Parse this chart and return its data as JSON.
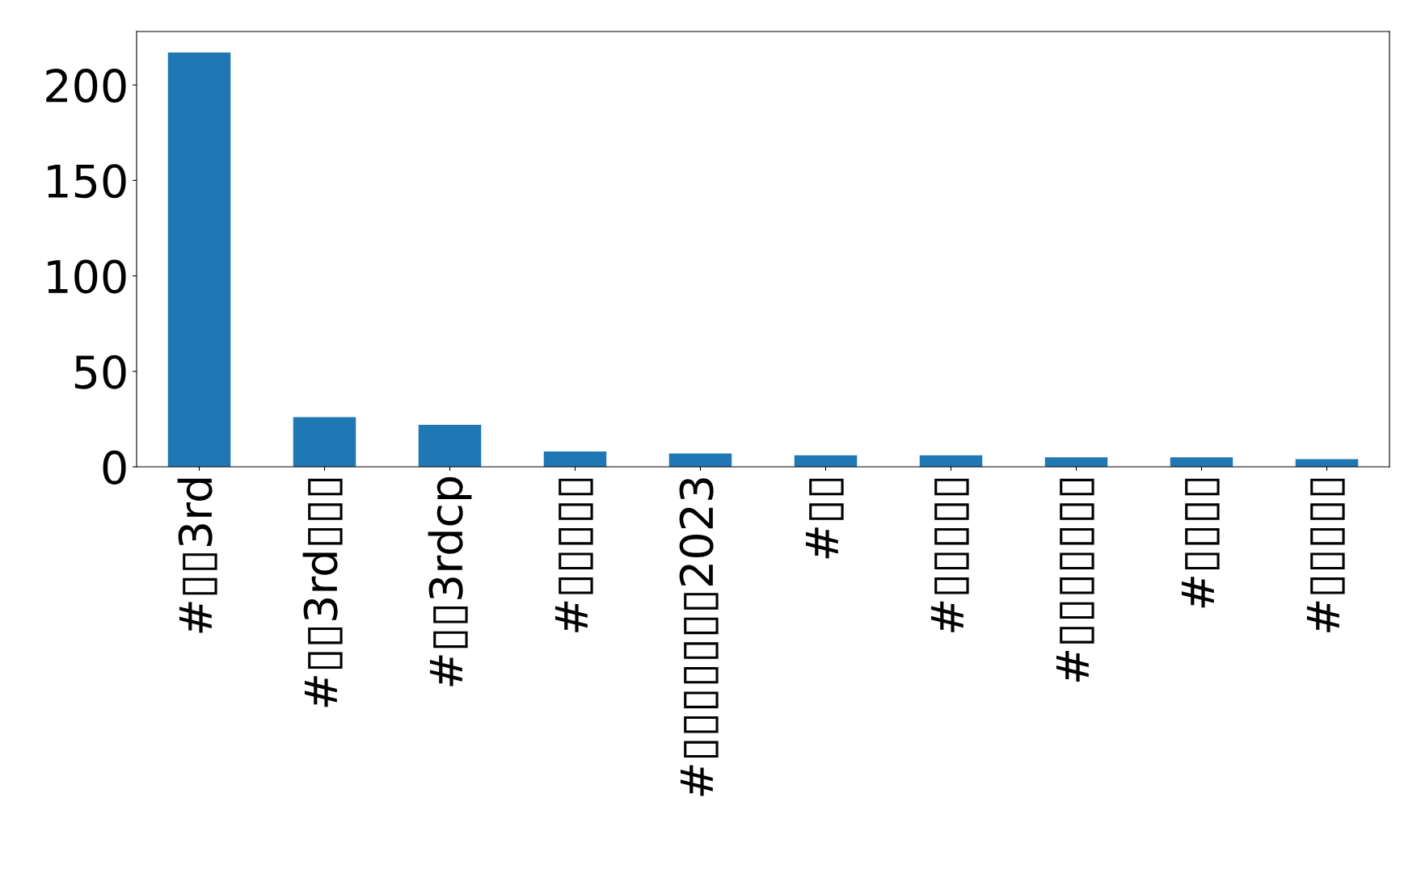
{
  "chart_data": {
    "type": "bar",
    "categories": [
      "#▯▯3rd",
      "#▯▯3rd▯▯▯",
      "#▯▯3rdcp",
      "#▯▯▯▯▯",
      "#▯▯▯▯▯▯▯2023",
      "#▯▯",
      "#▯▯▯▯▯",
      "#▯▯▯▯▯▯▯",
      "#▯▯▯▯",
      "#▯▯▯▯▯"
    ],
    "values": [
      217,
      26,
      22,
      8,
      7,
      6,
      6,
      5,
      5,
      4
    ],
    "color": "#1f77b4",
    "ylim": [
      0,
      228
    ],
    "yticks": [
      0,
      50,
      100,
      150,
      200
    ],
    "grid": false,
    "legend": false
  }
}
